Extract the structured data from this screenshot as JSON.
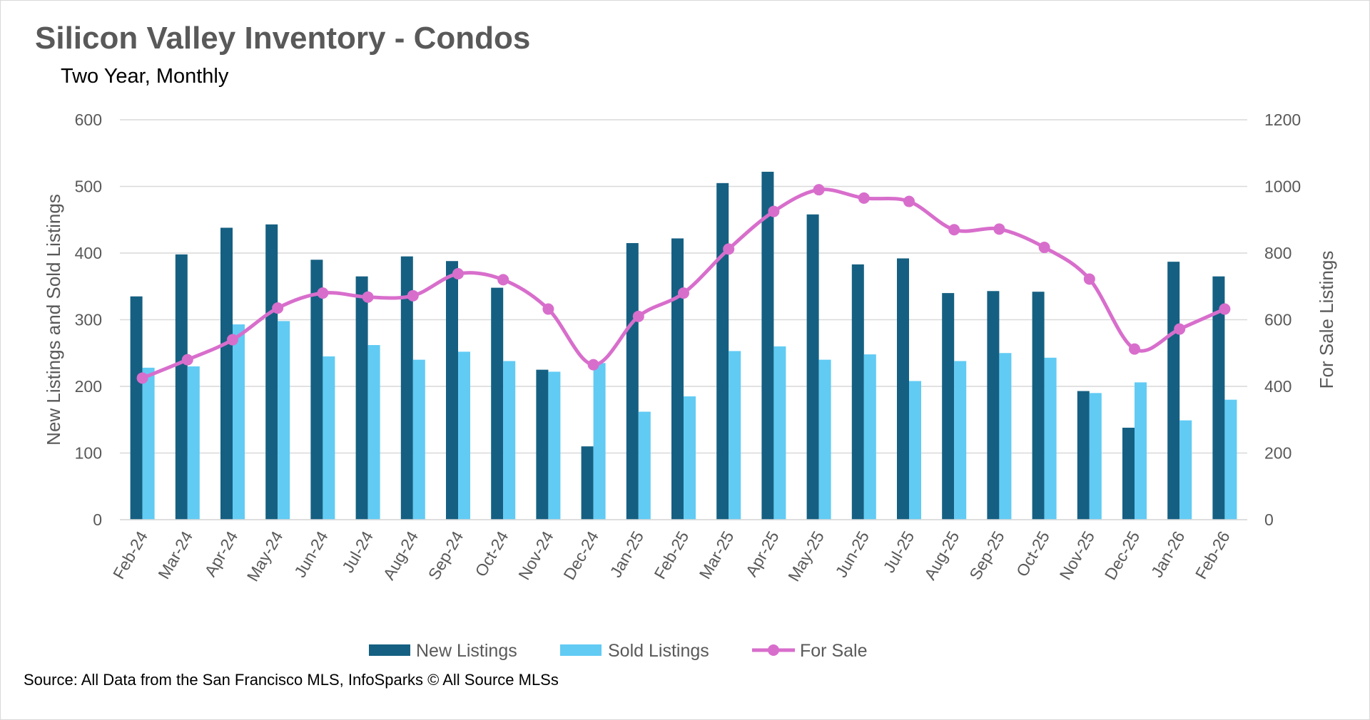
{
  "chart_data": {
    "type": "bar",
    "title": "Silicon Valley Inventory - Condos",
    "subtitle": "Two Year, Monthly",
    "source": "Source: All Data from the San Francisco MLS, InfoSparks © All Source MLSs",
    "categories": [
      "Feb-24",
      "Mar-24",
      "Apr-24",
      "May-24",
      "Jun-24",
      "Jul-24",
      "Aug-24",
      "Sep-24",
      "Oct-24",
      "Nov-24",
      "Dec-24",
      "Jan-25",
      "Feb-25",
      "Mar-25",
      "Apr-25",
      "May-25",
      "Jun-25",
      "Jul-25",
      "Aug-25",
      "Sep-25",
      "Oct-25",
      "Nov-25",
      "Dec-25",
      "Jan-26",
      "Feb-26"
    ],
    "ylabel": "New Listings and Sold Listings",
    "y2label": "For Sale Listings",
    "ylim": [
      0,
      600
    ],
    "y2lim": [
      0,
      1200
    ],
    "yticks": [
      0,
      100,
      200,
      300,
      400,
      500,
      600
    ],
    "y2ticks": [
      0,
      200,
      400,
      600,
      800,
      1000,
      1200
    ],
    "grid": true,
    "legend_position": "bottom",
    "series": [
      {
        "name": "New Listings",
        "type": "bar",
        "axis": "left",
        "color": "#156082",
        "values": [
          335,
          398,
          438,
          443,
          390,
          365,
          395,
          388,
          348,
          225,
          110,
          415,
          422,
          505,
          522,
          458,
          383,
          392,
          340,
          343,
          342,
          193,
          138,
          387,
          365
        ]
      },
      {
        "name": "Sold Listings",
        "type": "bar",
        "axis": "left",
        "color": "#61CBF4",
        "values": [
          228,
          230,
          293,
          298,
          245,
          262,
          240,
          252,
          238,
          222,
          235,
          162,
          185,
          253,
          260,
          240,
          248,
          208,
          238,
          250,
          243,
          190,
          206,
          149,
          180
        ]
      },
      {
        "name": "For Sale",
        "type": "line",
        "axis": "right",
        "color": "#D86ECC",
        "values": [
          425,
          480,
          540,
          635,
          680,
          668,
          672,
          738,
          720,
          632,
          465,
          610,
          680,
          812,
          925,
          990,
          965,
          955,
          870,
          872,
          817,
          722,
          512,
          572,
          632
        ]
      }
    ]
  }
}
